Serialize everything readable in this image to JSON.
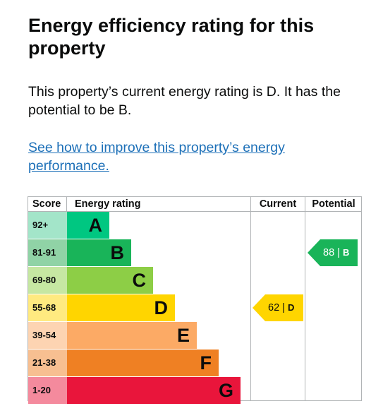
{
  "heading": "Energy efficiency rating for this property",
  "summary": "This property’s current energy rating is D. It has the potential to be B.",
  "improve_link": "See how to improve this property’s energy performance.",
  "chart_data": {
    "type": "table",
    "headers": {
      "score": "Score",
      "rating": "Energy rating",
      "current": "Current",
      "potential": "Potential"
    },
    "bands": [
      {
        "score": "92+",
        "letter": "A",
        "color": "#00c781",
        "score_bg": "#a3e5c9"
      },
      {
        "score": "81-91",
        "letter": "B",
        "color": "#19b459",
        "score_bg": "#90d3a6"
      },
      {
        "score": "69-80",
        "letter": "C",
        "color": "#8dce46",
        "score_bg": "#c6e7a2"
      },
      {
        "score": "55-68",
        "letter": "D",
        "color": "#ffd500",
        "score_bg": "#ffea80"
      },
      {
        "score": "39-54",
        "letter": "E",
        "color": "#fcaa65",
        "score_bg": "#fdd4b2"
      },
      {
        "score": "21-38",
        "letter": "F",
        "color": "#ef8023",
        "score_bg": "#f7bf91"
      },
      {
        "score": "1-20",
        "letter": "G",
        "color": "#e9153b",
        "score_bg": "#f48a9d"
      }
    ],
    "current": {
      "value": 62,
      "letter": "D",
      "separator": "|",
      "color": "#ffd500"
    },
    "potential": {
      "value": 88,
      "letter": "B",
      "separator": "|",
      "color": "#19b459"
    }
  }
}
